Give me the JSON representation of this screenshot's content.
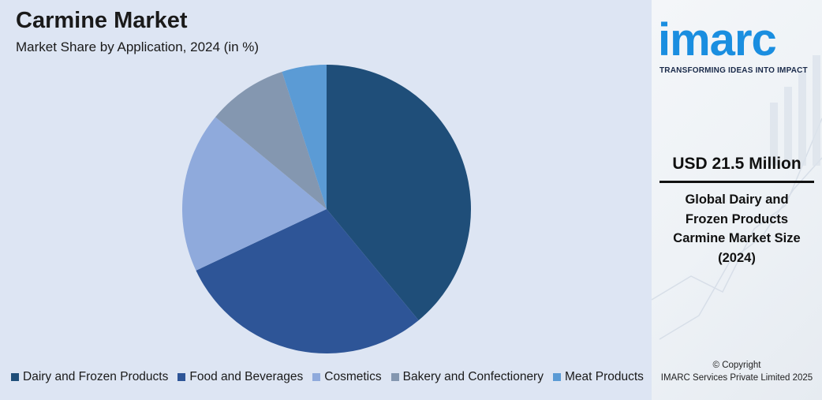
{
  "chart_data": {
    "type": "pie",
    "title": "Carmine Market",
    "subtitle": "Market Share by Application, 2024 (in %)",
    "categories": [
      "Dairy and Frozen Products",
      "Food and Beverages",
      "Cosmetics",
      "Bakery and Confectionery",
      "Meat Products"
    ],
    "values": [
      39,
      29,
      18,
      9,
      5
    ],
    "colors": [
      "#1f4e79",
      "#2e5597",
      "#8faadc",
      "#8497b0",
      "#5b9bd5"
    ],
    "legend_position": "bottom"
  },
  "brand": {
    "logo_text": "imarc",
    "tagline": "TRANSFORMING IDEAS INTO IMPACT"
  },
  "stat": {
    "value": "USD 21.5 Million",
    "label_lines": [
      "Global Dairy and",
      "Frozen Products",
      "Carmine Market Size",
      "(2024)"
    ]
  },
  "footer": {
    "copyright_line1": "© Copyright",
    "copyright_line2": "IMARC Services Private Limited 2025"
  }
}
